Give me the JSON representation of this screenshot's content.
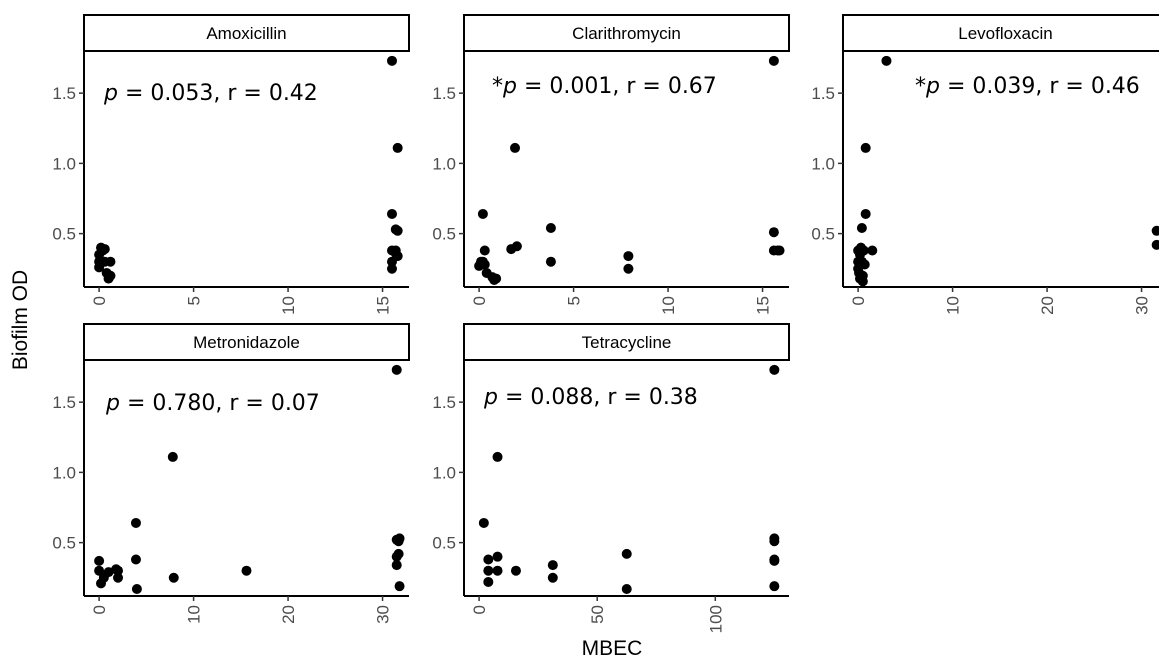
{
  "chart_data": {
    "type": "scatter",
    "xlabel": "MBEC",
    "ylabel": "Biofilm OD",
    "y_ticks": [
      0.5,
      1.0,
      1.5
    ],
    "y_tick_labels": [
      "0.5",
      "1.0",
      "1.5"
    ],
    "ylim": [
      0.12,
      1.8
    ],
    "grid": false,
    "facets": [
      {
        "title": "Amoxicillin",
        "annotation": {
          "prefix": "",
          "p_label": "p",
          "text": " = 0.053, r = 0.42"
        },
        "xlim": [
          -0.8,
          16.4
        ],
        "x_ticks": [
          0,
          5,
          10,
          15
        ],
        "x_tick_labels": [
          "0",
          "5",
          "10",
          "15"
        ],
        "points": [
          {
            "x": 0.0,
            "y": 0.35
          },
          {
            "x": 0.0,
            "y": 0.3
          },
          {
            "x": 0.0,
            "y": 0.26
          },
          {
            "x": 0.1,
            "y": 0.4
          },
          {
            "x": 0.2,
            "y": 0.38
          },
          {
            "x": 0.3,
            "y": 0.39
          },
          {
            "x": 0.3,
            "y": 0.3
          },
          {
            "x": 0.4,
            "y": 0.22
          },
          {
            "x": 0.5,
            "y": 0.18
          },
          {
            "x": 0.6,
            "y": 0.3
          },
          {
            "x": 0.6,
            "y": 0.2
          },
          {
            "x": 15.5,
            "y": 1.73
          },
          {
            "x": 15.5,
            "y": 0.64
          },
          {
            "x": 15.5,
            "y": 0.38
          },
          {
            "x": 15.5,
            "y": 0.3
          },
          {
            "x": 15.5,
            "y": 0.25
          },
          {
            "x": 15.7,
            "y": 0.53
          },
          {
            "x": 15.7,
            "y": 0.38
          },
          {
            "x": 15.7,
            "y": 0.36
          },
          {
            "x": 15.8,
            "y": 1.11
          },
          {
            "x": 15.8,
            "y": 0.52
          },
          {
            "x": 15.8,
            "y": 0.34
          }
        ]
      },
      {
        "title": "Clarithromycin",
        "annotation": {
          "prefix": "*",
          "p_label": "p",
          "text": " = 0.001, r = 0.67"
        },
        "xlim": [
          -0.8,
          16.4
        ],
        "x_ticks": [
          0,
          5,
          10,
          15
        ],
        "x_tick_labels": [
          "0",
          "5",
          "10",
          "15"
        ],
        "points": [
          {
            "x": 0.0,
            "y": 0.27
          },
          {
            "x": 0.1,
            "y": 0.3
          },
          {
            "x": 0.2,
            "y": 0.64
          },
          {
            "x": 0.2,
            "y": 0.3
          },
          {
            "x": 0.3,
            "y": 0.38
          },
          {
            "x": 0.3,
            "y": 0.28
          },
          {
            "x": 0.4,
            "y": 0.22
          },
          {
            "x": 0.7,
            "y": 0.19
          },
          {
            "x": 0.8,
            "y": 0.17
          },
          {
            "x": 0.9,
            "y": 0.18
          },
          {
            "x": 1.7,
            "y": 0.39
          },
          {
            "x": 1.9,
            "y": 1.11
          },
          {
            "x": 2.0,
            "y": 0.41
          },
          {
            "x": 3.8,
            "y": 0.54
          },
          {
            "x": 3.8,
            "y": 0.3
          },
          {
            "x": 7.9,
            "y": 0.34
          },
          {
            "x": 7.9,
            "y": 0.25
          },
          {
            "x": 15.6,
            "y": 1.73
          },
          {
            "x": 15.6,
            "y": 0.51
          },
          {
            "x": 15.6,
            "y": 0.38
          },
          {
            "x": 15.8,
            "y": 0.38
          },
          {
            "x": 15.9,
            "y": 0.38
          }
        ]
      },
      {
        "title": "Levofloxacin",
        "annotation": {
          "prefix": "*",
          "p_label": "p",
          "text": " = 0.039, r = 0.46"
        },
        "xlim": [
          -1.6,
          32.8
        ],
        "x_ticks": [
          0,
          10,
          20,
          30
        ],
        "x_tick_labels": [
          "0",
          "10",
          "20",
          "30"
        ],
        "points": [
          {
            "x": 0.0,
            "y": 0.38
          },
          {
            "x": 0.0,
            "y": 0.3
          },
          {
            "x": 0.0,
            "y": 0.25
          },
          {
            "x": 0.1,
            "y": 0.22
          },
          {
            "x": 0.2,
            "y": 0.35
          },
          {
            "x": 0.2,
            "y": 0.18
          },
          {
            "x": 0.3,
            "y": 0.4
          },
          {
            "x": 0.4,
            "y": 0.54
          },
          {
            "x": 0.4,
            "y": 0.3
          },
          {
            "x": 0.5,
            "y": 0.2
          },
          {
            "x": 0.5,
            "y": 0.16
          },
          {
            "x": 0.6,
            "y": 0.38
          },
          {
            "x": 0.7,
            "y": 0.28
          },
          {
            "x": 0.8,
            "y": 0.64
          },
          {
            "x": 0.8,
            "y": 1.11
          },
          {
            "x": 1.5,
            "y": 0.38
          },
          {
            "x": 3.0,
            "y": 1.73
          },
          {
            "x": 31.6,
            "y": 0.52
          },
          {
            "x": 31.6,
            "y": 0.42
          }
        ]
      },
      {
        "title": "Metronidazole",
        "annotation": {
          "prefix": "",
          "p_label": "p",
          "text": " = 0.780, r = 0.07"
        },
        "xlim": [
          -1.6,
          32.8
        ],
        "x_ticks": [
          0,
          10,
          20,
          30
        ],
        "x_tick_labels": [
          "0",
          "10",
          "20",
          "30"
        ],
        "points": [
          {
            "x": 0.0,
            "y": 0.37
          },
          {
            "x": 0.0,
            "y": 0.3
          },
          {
            "x": 0.2,
            "y": 0.21
          },
          {
            "x": 0.5,
            "y": 0.25
          },
          {
            "x": 1.0,
            "y": 0.29
          },
          {
            "x": 1.8,
            "y": 0.31
          },
          {
            "x": 2.0,
            "y": 0.3
          },
          {
            "x": 2.0,
            "y": 0.25
          },
          {
            "x": 3.9,
            "y": 0.64
          },
          {
            "x": 3.9,
            "y": 0.38
          },
          {
            "x": 4.0,
            "y": 0.17
          },
          {
            "x": 7.8,
            "y": 1.11
          },
          {
            "x": 7.9,
            "y": 0.25
          },
          {
            "x": 15.6,
            "y": 0.3
          },
          {
            "x": 31.5,
            "y": 1.73
          },
          {
            "x": 31.5,
            "y": 0.52
          },
          {
            "x": 31.5,
            "y": 0.4
          },
          {
            "x": 31.5,
            "y": 0.34
          },
          {
            "x": 31.7,
            "y": 0.51
          },
          {
            "x": 31.8,
            "y": 0.53
          },
          {
            "x": 31.7,
            "y": 0.42
          },
          {
            "x": 31.8,
            "y": 0.19
          }
        ]
      },
      {
        "title": "Tetracycline",
        "annotation": {
          "prefix": "",
          "p_label": "p",
          "text": " = 0.088, r = 0.38"
        },
        "xlim": [
          -6.4,
          131.2
        ],
        "x_ticks": [
          0,
          50,
          100
        ],
        "x_tick_labels": [
          "0",
          "50",
          "100"
        ],
        "points": [
          {
            "x": 2.0,
            "y": 0.64
          },
          {
            "x": 3.9,
            "y": 0.38
          },
          {
            "x": 3.9,
            "y": 0.3
          },
          {
            "x": 3.9,
            "y": 0.22
          },
          {
            "x": 7.8,
            "y": 1.11
          },
          {
            "x": 7.8,
            "y": 0.4
          },
          {
            "x": 7.8,
            "y": 0.3
          },
          {
            "x": 15.6,
            "y": 0.3
          },
          {
            "x": 31.2,
            "y": 0.34
          },
          {
            "x": 31.2,
            "y": 0.25
          },
          {
            "x": 62.5,
            "y": 0.42
          },
          {
            "x": 62.5,
            "y": 0.17
          },
          {
            "x": 125,
            "y": 1.73
          },
          {
            "x": 125,
            "y": 0.53
          },
          {
            "x": 125,
            "y": 0.51
          },
          {
            "x": 125,
            "y": 0.38
          },
          {
            "x": 125,
            "y": 0.37
          },
          {
            "x": 125,
            "y": 0.19
          }
        ]
      }
    ]
  }
}
